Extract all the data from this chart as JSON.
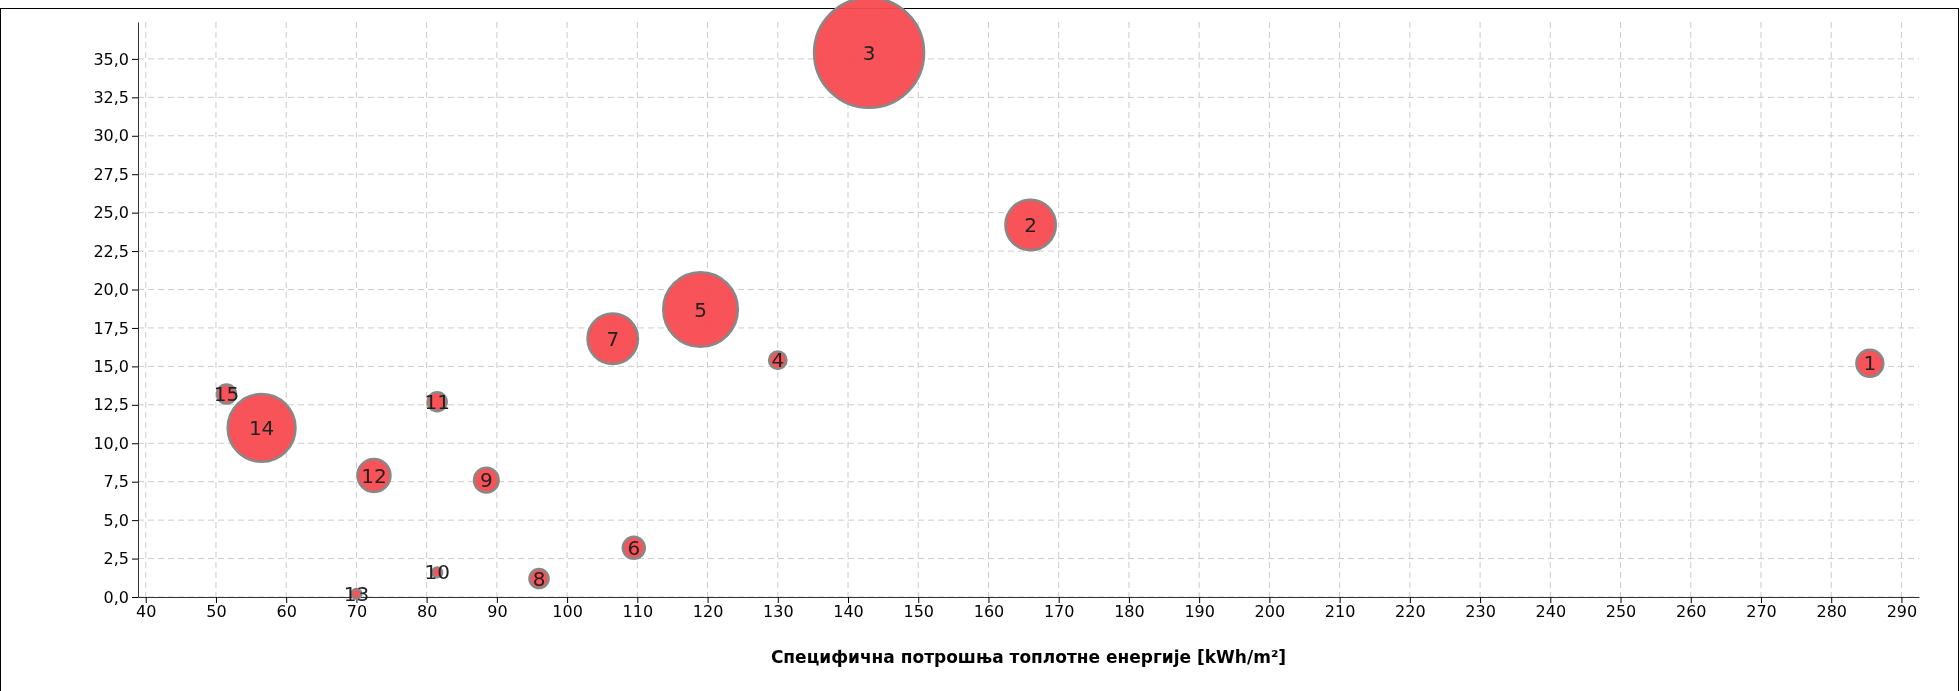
{
  "chart_data": {
    "type": "bubble",
    "xlabel": "Специфична потрошња топлотне енергије [kWh/m²]",
    "x": [
      285.5,
      166,
      143,
      130,
      119,
      109.5,
      106.5,
      96,
      88.5,
      81.5,
      81.5,
      72.5,
      70,
      56.5,
      51.5
    ],
    "values": [
      15.2,
      24.2,
      35.4,
      15.4,
      18.7,
      3.2,
      16.8,
      1.2,
      7.6,
      1.6,
      12.7,
      7.9,
      0.2,
      11.0,
      13.2
    ],
    "sizes": [
      0.06,
      0.21,
      1,
      0.025,
      0.46,
      0.04,
      0.21,
      0.03,
      0.05,
      0.008,
      0.03,
      0.09,
      0.008,
      0.38,
      0.03
    ],
    "color": "#f74a50",
    "annotations": [
      {
        "text": "1",
        "x": 285.5,
        "y": 15.2
      },
      {
        "text": "2",
        "x": 166,
        "y": 24.2
      },
      {
        "text": "3",
        "x": 143,
        "y": 35.4
      },
      {
        "text": "4",
        "x": 130,
        "y": 15.4
      },
      {
        "text": "5",
        "x": 119,
        "y": 18.7
      },
      {
        "text": "6",
        "x": 109.5,
        "y": 3.2
      },
      {
        "text": "7",
        "x": 106.5,
        "y": 16.8
      },
      {
        "text": "8",
        "x": 96,
        "y": 1.2
      },
      {
        "text": "9",
        "x": 88.5,
        "y": 7.6
      },
      {
        "text": "10",
        "x": 81.5,
        "y": 1.6
      },
      {
        "text": "11",
        "x": 81.5,
        "y": 12.7
      },
      {
        "text": "12",
        "x": 72.5,
        "y": 7.9
      },
      {
        "text": "13",
        "x": 70,
        "y": 0.2
      },
      {
        "text": "14",
        "x": 56.5,
        "y": 11.0
      },
      {
        "text": "15",
        "x": 51.5,
        "y": 13.2
      }
    ],
    "xlim": [
      38.9,
      292.5
    ],
    "xticks": [
      40,
      50,
      60,
      70,
      80,
      90,
      100,
      110,
      120,
      130,
      140,
      150,
      160,
      170,
      180,
      190,
      200,
      210,
      220,
      230,
      240,
      250,
      260,
      270,
      280,
      290
    ],
    "ylim": [
      0,
      37.4
    ],
    "yticks": [
      {
        "value": 0,
        "label": "0,0"
      },
      {
        "value": 2.5,
        "label": "2,5"
      },
      {
        "value": 5,
        "label": "5,0"
      },
      {
        "value": 7.5,
        "label": "7,5"
      },
      {
        "value": 10,
        "label": "10,0"
      },
      {
        "value": 12.5,
        "label": "12,5"
      },
      {
        "value": 15,
        "label": "15,0"
      },
      {
        "value": 17.5,
        "label": "17,5"
      },
      {
        "value": 20,
        "label": "20,0"
      },
      {
        "value": 22.5,
        "label": "22,5"
      },
      {
        "value": 25,
        "label": "25,0"
      },
      {
        "value": 27.5,
        "label": "27,5"
      },
      {
        "value": 30,
        "label": "30,0"
      },
      {
        "value": 32.5,
        "label": "32,5"
      },
      {
        "value": 35,
        "label": "35,0"
      }
    ],
    "grid": true
  }
}
